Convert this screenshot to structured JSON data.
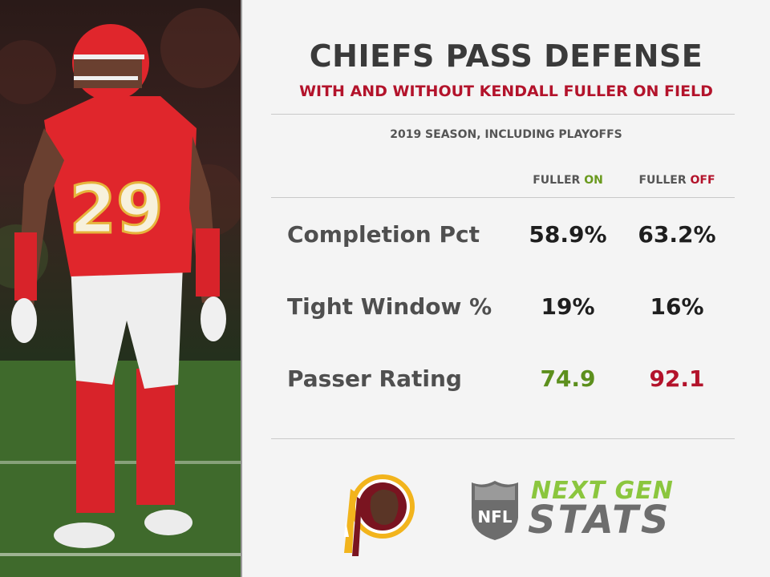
{
  "graphic": {
    "title": "CHIEFS PASS DEFENSE",
    "subtitle": "WITH AND WITHOUT KENDALL FULLER ON FIELD",
    "season_note": "2019 SEASON, INCLUDING PLAYOFFS",
    "columns": {
      "on": {
        "prefix": "FULLER",
        "status": "ON",
        "color": "#6a9a1e"
      },
      "off": {
        "prefix": "FULLER",
        "status": "OFF",
        "color": "#b3132b"
      }
    },
    "rows": [
      {
        "label": "Completion Pct",
        "on": "58.9%",
        "off": "63.2%"
      },
      {
        "label": "Tight Window %",
        "on": "19%",
        "off": "16%"
      },
      {
        "label": "Passer Rating",
        "on": "74.9",
        "off": "92.1"
      }
    ]
  },
  "photo": {
    "jersey_number": "29"
  },
  "branding": {
    "team_logo_icon": "redskins-logo-icon",
    "league_logo_icon": "nfl-shield-icon",
    "product_line1": "NEXT GEN",
    "product_line2": "STATS"
  },
  "colors": {
    "title": "#3a3a3a",
    "accent_red": "#b3132b",
    "accent_green": "#6a9a1e",
    "background": "#f4f4f4"
  }
}
